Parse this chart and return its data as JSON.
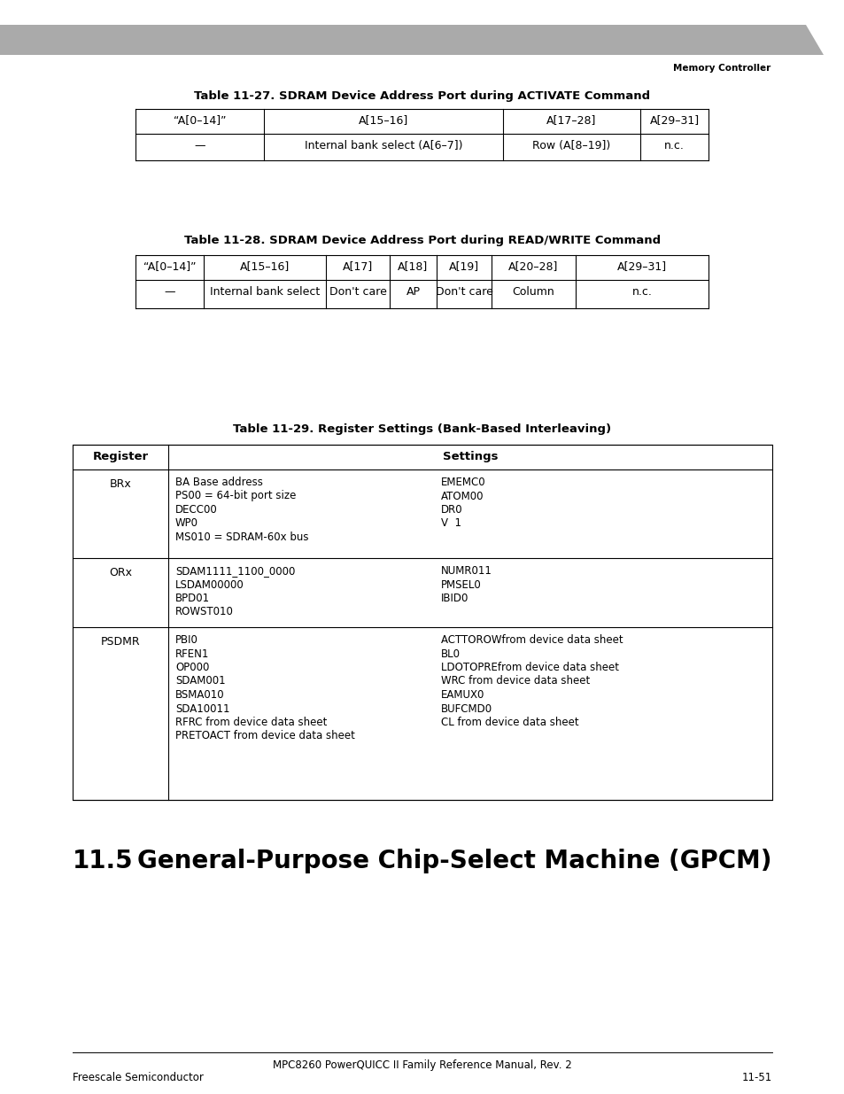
{
  "page_bg": "#ffffff",
  "header_bar_color": "#999999",
  "header_text": "Memory Controller",
  "table1_title_plain": "Table 11-27. SDRAM Device Address Port during ",
  "table1_title_mono": "ACTIVATE",
  "table1_title_end": " Command",
  "table1_headers": [
    "“A[0–14]”",
    "A[15–16]",
    "A[17–28]",
    "A[29–31]"
  ],
  "table1_row": [
    "—",
    "Internal bank select (A[6–7])",
    "Row (A[8–19])",
    "n.c."
  ],
  "table2_title_plain": "Table 11-28. SDRAM Device Address Port during ",
  "table2_title_mono": "READ/WRITE",
  "table2_title_end": " Command",
  "table2_headers": [
    "“A[0–14]”",
    "A[15–16]",
    "A[17]",
    "A[18]",
    "A[19]",
    "A[20–28]",
    "A[29–31]"
  ],
  "table2_row": [
    "—",
    "Internal bank select",
    "Don't care",
    "AP",
    "Don't care",
    "Column",
    "n.c."
  ],
  "table3_title": "Table 11-29. Register Settings (Bank-Based Interleaving)",
  "table3_rows": [
    {
      "register": "BRx",
      "left_settings": "BA Base address\nPS00 = 64-bit port size\nDECC00\nWP0\nMS010 = SDRAM-60x bus",
      "right_settings": "EMEMC0\nATOM00\nDR0\nV  1"
    },
    {
      "register": "ORx",
      "left_settings": "SDAM1111_1100_0000\nLSDAM00000\nBPD01\nROWST010",
      "right_settings": "NUMR011\nPMSEL0\nIBID0"
    },
    {
      "register": "PSDMR",
      "left_settings": "PBI0\nRFEN1\nOP000\nSDAM001\nBSMA010\nSDA10011\nRFRC from device data sheet\nPRETOACT from device data sheet",
      "right_settings": "ACTTOROWfrom device data sheet\nBL0\nLDOTOPREfrom device data sheet\nWRC from device data sheet\nEAMUX0\nBUFCMD0\nCL from device data sheet"
    }
  ],
  "section_title_num": "11.5",
  "section_title_text": "General-Purpose Chip-Select Machine (GPCM)",
  "footer_text": "MPC8260 PowerQUICC II Family Reference Manual, Rev. 2",
  "footer_left": "Freescale Semiconductor",
  "footer_right": "11-51"
}
